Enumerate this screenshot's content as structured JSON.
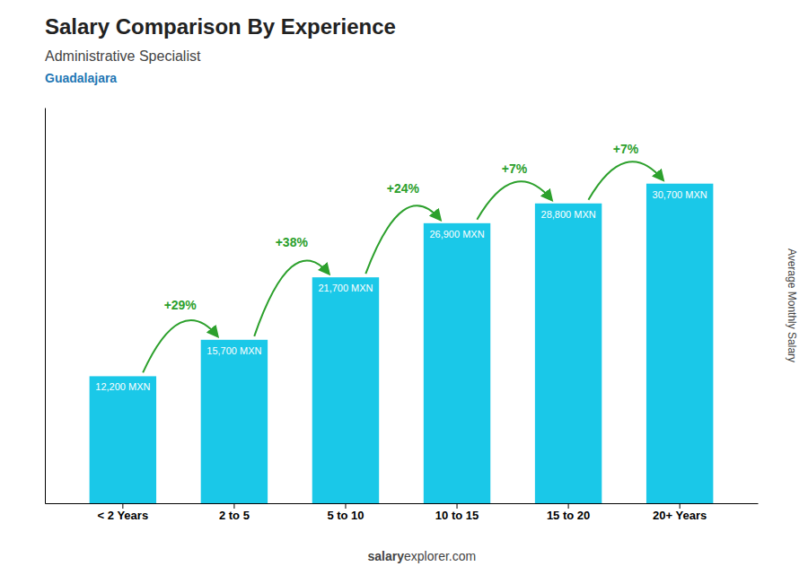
{
  "chart_data": {
    "type": "bar",
    "title": "Salary Comparison By Experience",
    "subtitle": "Administrative Specialist",
    "city": "Guadalajara",
    "ylabel": "Average Monthly Salary",
    "credit": [
      "salary",
      "explorer.com"
    ],
    "categories": [
      "< 2 Years",
      "2 to 5",
      "5 to 10",
      "10 to 15",
      "15 to 20",
      "20+ Years"
    ],
    "values": [
      12200,
      15700,
      21700,
      26900,
      28800,
      30700
    ],
    "value_labels": [
      "12,200 MXN",
      "15,700 MXN",
      "21,700 MXN",
      "26,900 MXN",
      "28,800 MXN",
      "30,700 MXN"
    ],
    "annotations": [
      "+29%",
      "+38%",
      "+24%",
      "+7%",
      "+7%"
    ],
    "color": "#1ac8e8",
    "ylim": [
      0,
      38000
    ],
    "tick_labels": "x"
  }
}
